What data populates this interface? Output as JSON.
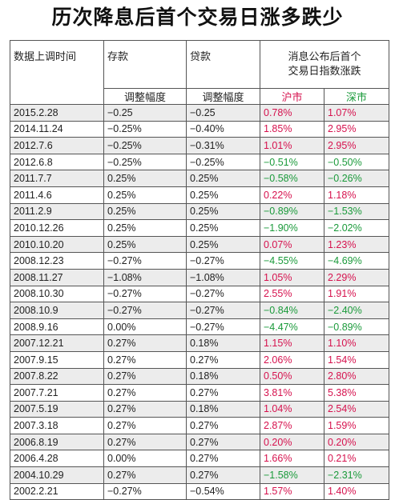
{
  "title": "历次降息后首个交易日涨多跌少",
  "colors": {
    "up": "#d6124e",
    "down": "#1a9a3a",
    "row_alt": "#ececec"
  },
  "table": {
    "headers": {
      "date": "数据上调时间",
      "deposit": "存款",
      "loan": "贷款",
      "market_line1": "消息公布后首个",
      "market_line2": "交易日指数涨跌",
      "deposit_sub": "调整幅度",
      "loan_sub": "调整幅度",
      "sh": "沪市",
      "sz": "深市"
    },
    "rows": [
      {
        "date": "2015.2.28",
        "deposit": "−0.25",
        "loan": "−0.25",
        "sh": "0.78%",
        "sh_dir": "up",
        "sz": "1.07%",
        "sz_dir": "up"
      },
      {
        "date": "2014.11.24",
        "deposit": "−0.25%",
        "loan": "−0.40%",
        "sh": "1.85%",
        "sh_dir": "up",
        "sz": "2.95%",
        "sz_dir": "up"
      },
      {
        "date": "2012.7.6",
        "deposit": "−0.25%",
        "loan": "−0.31%",
        "sh": "1.01%",
        "sh_dir": "up",
        "sz": "2.95%",
        "sz_dir": "up"
      },
      {
        "date": "2012.6.8",
        "deposit": "−0.25%",
        "loan": "−0.25%",
        "sh": "−0.51%",
        "sh_dir": "down",
        "sz": "−0.50%",
        "sz_dir": "down"
      },
      {
        "date": "2011.7.7",
        "deposit": "0.25%",
        "loan": "0.25%",
        "sh": "−0.58%",
        "sh_dir": "down",
        "sz": "−0.26%",
        "sz_dir": "down"
      },
      {
        "date": "2011.4.6",
        "deposit": "0.25%",
        "loan": "0.25%",
        "sh": "0.22%",
        "sh_dir": "up",
        "sz": "1.18%",
        "sz_dir": "up"
      },
      {
        "date": "2011.2.9",
        "deposit": "0.25%",
        "loan": "0.25%",
        "sh": "−0.89%",
        "sh_dir": "down",
        "sz": "−1.53%",
        "sz_dir": "down"
      },
      {
        "date": "2010.12.26",
        "deposit": "0.25%",
        "loan": "0.25%",
        "sh": "−1.90%",
        "sh_dir": "down",
        "sz": "−2.02%",
        "sz_dir": "down"
      },
      {
        "date": "2010.10.20",
        "deposit": "0.25%",
        "loan": "0.25%",
        "sh": "0.07%",
        "sh_dir": "up",
        "sz": "1.23%",
        "sz_dir": "up"
      },
      {
        "date": "2008.12.23",
        "deposit": "−0.27%",
        "loan": "−0.27%",
        "sh": "−4.55%",
        "sh_dir": "down",
        "sz": "−4.69%",
        "sz_dir": "down"
      },
      {
        "date": "2008.11.27",
        "deposit": "−1.08%",
        "loan": "−1.08%",
        "sh": "1.05%",
        "sh_dir": "up",
        "sz": "2.29%",
        "sz_dir": "up"
      },
      {
        "date": "2008.10.30",
        "deposit": "−0.27%",
        "loan": "−0.27%",
        "sh": "2.55%",
        "sh_dir": "up",
        "sz": "1.91%",
        "sz_dir": "up"
      },
      {
        "date": "2008.10.9",
        "deposit": "−0.27%",
        "loan": "−0.27%",
        "sh": "−0.84%",
        "sh_dir": "down",
        "sz": "−2.40%",
        "sz_dir": "down"
      },
      {
        "date": "2008.9.16",
        "deposit": "0.00%",
        "loan": "−0.27%",
        "sh": "−4.47%",
        "sh_dir": "down",
        "sz": "−0.89%",
        "sz_dir": "down"
      },
      {
        "date": "2007.12.21",
        "deposit": "0.27%",
        "loan": "0.18%",
        "sh": "1.15%",
        "sh_dir": "up",
        "sz": "1.10%",
        "sz_dir": "up"
      },
      {
        "date": "2007.9.15",
        "deposit": "0.27%",
        "loan": "0.27%",
        "sh": "2.06%",
        "sh_dir": "up",
        "sz": "1.54%",
        "sz_dir": "up"
      },
      {
        "date": "2007.8.22",
        "deposit": "0.27%",
        "loan": "0.18%",
        "sh": "0.50%",
        "sh_dir": "up",
        "sz": "2.80%",
        "sz_dir": "up"
      },
      {
        "date": "2007.7.21",
        "deposit": "0.27%",
        "loan": "0.27%",
        "sh": "3.81%",
        "sh_dir": "up",
        "sz": "5.38%",
        "sz_dir": "up"
      },
      {
        "date": "2007.5.19",
        "deposit": "0.27%",
        "loan": "0.18%",
        "sh": "1.04%",
        "sh_dir": "up",
        "sz": "2.54%",
        "sz_dir": "up"
      },
      {
        "date": "2007.3.18",
        "deposit": "0.27%",
        "loan": "0.27%",
        "sh": "2.87%",
        "sh_dir": "up",
        "sz": "1.59%",
        "sz_dir": "up"
      },
      {
        "date": "2006.8.19",
        "deposit": "0.27%",
        "loan": "0.27%",
        "sh": "0.20%",
        "sh_dir": "up",
        "sz": "0.20%",
        "sz_dir": "up"
      },
      {
        "date": "2006.4.28",
        "deposit": "0.00%",
        "loan": "0.27%",
        "sh": "1.66%",
        "sh_dir": "up",
        "sz": "0.21%",
        "sz_dir": "up"
      },
      {
        "date": "2004.10.29",
        "deposit": "0.27%",
        "loan": "0.27%",
        "sh": "−1.58%",
        "sh_dir": "down",
        "sz": "−2.31%",
        "sz_dir": "down"
      },
      {
        "date": "2002.2.21",
        "deposit": "−0.27%",
        "loan": "−0.54%",
        "sh": "1.57%",
        "sh_dir": "up",
        "sz": "1.40%",
        "sz_dir": "up"
      }
    ]
  }
}
